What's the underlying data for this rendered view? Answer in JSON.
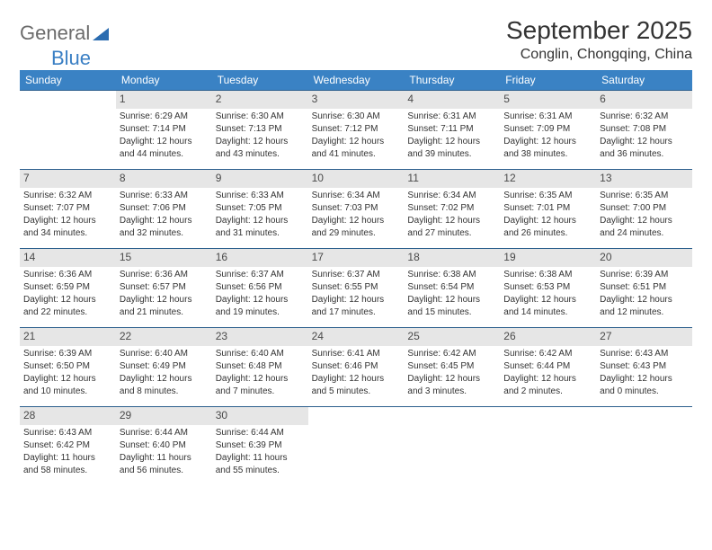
{
  "logo": {
    "word1": "General",
    "word2": "Blue"
  },
  "title": "September 2025",
  "location": "Conglin, Chongqing, China",
  "colors": {
    "header_bg": "#3a82c4",
    "header_text": "#ffffff",
    "daynum_bg": "#e6e6e6",
    "border": "#2c5f8d",
    "text": "#333333",
    "logo_gray": "#6b6b6b",
    "logo_blue": "#3a7fc4"
  },
  "typography": {
    "title_fontsize": 28,
    "location_fontsize": 16,
    "dayhead_fontsize": 12,
    "body_fontsize": 10
  },
  "weekdays": [
    "Sunday",
    "Monday",
    "Tuesday",
    "Wednesday",
    "Thursday",
    "Friday",
    "Saturday"
  ],
  "weeks": [
    [
      {
        "n": "",
        "lines": []
      },
      {
        "n": "1",
        "lines": [
          "Sunrise: 6:29 AM",
          "Sunset: 7:14 PM",
          "Daylight: 12 hours",
          "and 44 minutes."
        ]
      },
      {
        "n": "2",
        "lines": [
          "Sunrise: 6:30 AM",
          "Sunset: 7:13 PM",
          "Daylight: 12 hours",
          "and 43 minutes."
        ]
      },
      {
        "n": "3",
        "lines": [
          "Sunrise: 6:30 AM",
          "Sunset: 7:12 PM",
          "Daylight: 12 hours",
          "and 41 minutes."
        ]
      },
      {
        "n": "4",
        "lines": [
          "Sunrise: 6:31 AM",
          "Sunset: 7:11 PM",
          "Daylight: 12 hours",
          "and 39 minutes."
        ]
      },
      {
        "n": "5",
        "lines": [
          "Sunrise: 6:31 AM",
          "Sunset: 7:09 PM",
          "Daylight: 12 hours",
          "and 38 minutes."
        ]
      },
      {
        "n": "6",
        "lines": [
          "Sunrise: 6:32 AM",
          "Sunset: 7:08 PM",
          "Daylight: 12 hours",
          "and 36 minutes."
        ]
      }
    ],
    [
      {
        "n": "7",
        "lines": [
          "Sunrise: 6:32 AM",
          "Sunset: 7:07 PM",
          "Daylight: 12 hours",
          "and 34 minutes."
        ]
      },
      {
        "n": "8",
        "lines": [
          "Sunrise: 6:33 AM",
          "Sunset: 7:06 PM",
          "Daylight: 12 hours",
          "and 32 minutes."
        ]
      },
      {
        "n": "9",
        "lines": [
          "Sunrise: 6:33 AM",
          "Sunset: 7:05 PM",
          "Daylight: 12 hours",
          "and 31 minutes."
        ]
      },
      {
        "n": "10",
        "lines": [
          "Sunrise: 6:34 AM",
          "Sunset: 7:03 PM",
          "Daylight: 12 hours",
          "and 29 minutes."
        ]
      },
      {
        "n": "11",
        "lines": [
          "Sunrise: 6:34 AM",
          "Sunset: 7:02 PM",
          "Daylight: 12 hours",
          "and 27 minutes."
        ]
      },
      {
        "n": "12",
        "lines": [
          "Sunrise: 6:35 AM",
          "Sunset: 7:01 PM",
          "Daylight: 12 hours",
          "and 26 minutes."
        ]
      },
      {
        "n": "13",
        "lines": [
          "Sunrise: 6:35 AM",
          "Sunset: 7:00 PM",
          "Daylight: 12 hours",
          "and 24 minutes."
        ]
      }
    ],
    [
      {
        "n": "14",
        "lines": [
          "Sunrise: 6:36 AM",
          "Sunset: 6:59 PM",
          "Daylight: 12 hours",
          "and 22 minutes."
        ]
      },
      {
        "n": "15",
        "lines": [
          "Sunrise: 6:36 AM",
          "Sunset: 6:57 PM",
          "Daylight: 12 hours",
          "and 21 minutes."
        ]
      },
      {
        "n": "16",
        "lines": [
          "Sunrise: 6:37 AM",
          "Sunset: 6:56 PM",
          "Daylight: 12 hours",
          "and 19 minutes."
        ]
      },
      {
        "n": "17",
        "lines": [
          "Sunrise: 6:37 AM",
          "Sunset: 6:55 PM",
          "Daylight: 12 hours",
          "and 17 minutes."
        ]
      },
      {
        "n": "18",
        "lines": [
          "Sunrise: 6:38 AM",
          "Sunset: 6:54 PM",
          "Daylight: 12 hours",
          "and 15 minutes."
        ]
      },
      {
        "n": "19",
        "lines": [
          "Sunrise: 6:38 AM",
          "Sunset: 6:53 PM",
          "Daylight: 12 hours",
          "and 14 minutes."
        ]
      },
      {
        "n": "20",
        "lines": [
          "Sunrise: 6:39 AM",
          "Sunset: 6:51 PM",
          "Daylight: 12 hours",
          "and 12 minutes."
        ]
      }
    ],
    [
      {
        "n": "21",
        "lines": [
          "Sunrise: 6:39 AM",
          "Sunset: 6:50 PM",
          "Daylight: 12 hours",
          "and 10 minutes."
        ]
      },
      {
        "n": "22",
        "lines": [
          "Sunrise: 6:40 AM",
          "Sunset: 6:49 PM",
          "Daylight: 12 hours",
          "and 8 minutes."
        ]
      },
      {
        "n": "23",
        "lines": [
          "Sunrise: 6:40 AM",
          "Sunset: 6:48 PM",
          "Daylight: 12 hours",
          "and 7 minutes."
        ]
      },
      {
        "n": "24",
        "lines": [
          "Sunrise: 6:41 AM",
          "Sunset: 6:46 PM",
          "Daylight: 12 hours",
          "and 5 minutes."
        ]
      },
      {
        "n": "25",
        "lines": [
          "Sunrise: 6:42 AM",
          "Sunset: 6:45 PM",
          "Daylight: 12 hours",
          "and 3 minutes."
        ]
      },
      {
        "n": "26",
        "lines": [
          "Sunrise: 6:42 AM",
          "Sunset: 6:44 PM",
          "Daylight: 12 hours",
          "and 2 minutes."
        ]
      },
      {
        "n": "27",
        "lines": [
          "Sunrise: 6:43 AM",
          "Sunset: 6:43 PM",
          "Daylight: 12 hours",
          "and 0 minutes."
        ]
      }
    ],
    [
      {
        "n": "28",
        "lines": [
          "Sunrise: 6:43 AM",
          "Sunset: 6:42 PM",
          "Daylight: 11 hours",
          "and 58 minutes."
        ]
      },
      {
        "n": "29",
        "lines": [
          "Sunrise: 6:44 AM",
          "Sunset: 6:40 PM",
          "Daylight: 11 hours",
          "and 56 minutes."
        ]
      },
      {
        "n": "30",
        "lines": [
          "Sunrise: 6:44 AM",
          "Sunset: 6:39 PM",
          "Daylight: 11 hours",
          "and 55 minutes."
        ]
      },
      {
        "n": "",
        "lines": []
      },
      {
        "n": "",
        "lines": []
      },
      {
        "n": "",
        "lines": []
      },
      {
        "n": "",
        "lines": []
      }
    ]
  ]
}
